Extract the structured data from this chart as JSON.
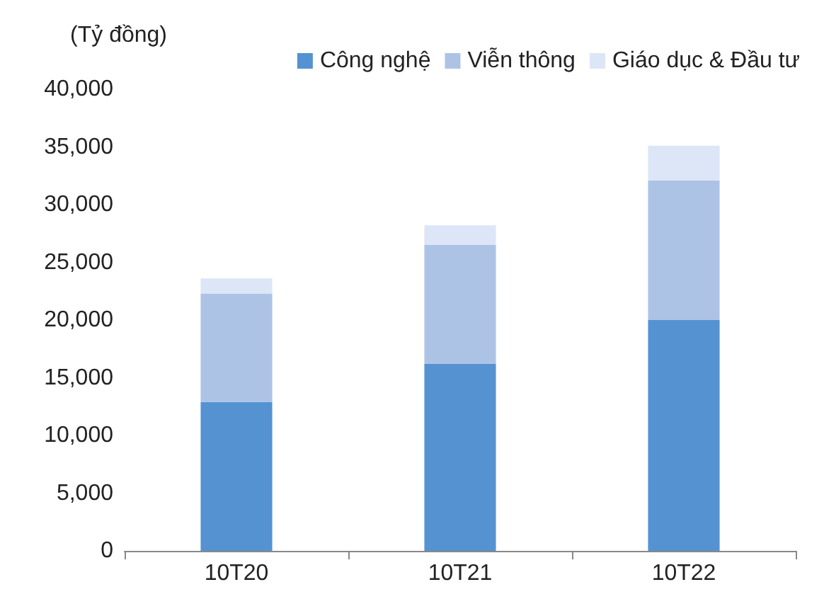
{
  "chart_data": {
    "type": "bar",
    "stacked": true,
    "ylabel": "(Tỷ đồng)",
    "categories": [
      "10T20",
      "10T21",
      "10T22"
    ],
    "series": [
      {
        "name": "Công nghệ",
        "color": "#5592d2",
        "values": [
          12900,
          16200,
          20000
        ]
      },
      {
        "name": "Viễn thông",
        "color": "#adc3e6",
        "values": [
          9400,
          10300,
          12100
        ]
      },
      {
        "name": "Giáo dục & Đầu tư",
        "color": "#dde6f7",
        "values": [
          1300,
          1700,
          3000
        ]
      }
    ],
    "ylim": [
      0,
      40000
    ],
    "yticks": [
      0,
      {
        "value": 5000,
        "label": "5,000"
      },
      {
        "value": 10000,
        "label": "10,000"
      },
      {
        "value": 15000,
        "label": "15,000"
      },
      {
        "value": 20000,
        "label": "20,000"
      },
      {
        "value": 25000,
        "label": "25,000"
      },
      {
        "value": 30000,
        "label": "30,000"
      },
      {
        "value": 35000,
        "label": "35,000"
      },
      {
        "value": 40000,
        "label": "40,000"
      }
    ],
    "grid": false,
    "legend": "top right"
  }
}
